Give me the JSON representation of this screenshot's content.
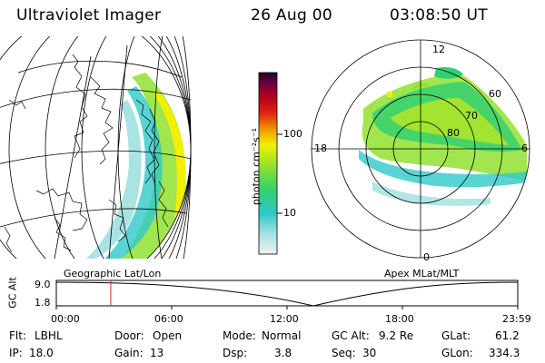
{
  "header": {
    "title": "Ultraviolet Imager",
    "date": "26 Aug 00",
    "time": "03:08:50 UT"
  },
  "colorbar": {
    "label": "photon cm⁻²s⁻¹",
    "ticks": [
      "100",
      "10"
    ],
    "colors": [
      "#f0f0f0",
      "#a0e0e0",
      "#30c8c8",
      "#30d070",
      "#90e030",
      "#f0f000",
      "#f0a000",
      "#e02010",
      "#b00020",
      "#700040",
      "#200020"
    ]
  },
  "left_map": {
    "label": "Geographic Lat/Lon"
  },
  "right_map": {
    "label": "Apex MLat/MLT",
    "mlt_labels": {
      "top": "12",
      "left": "18",
      "right": "6",
      "bottom": "0"
    },
    "lat_labels": [
      "60",
      "70",
      "80"
    ]
  },
  "altitude_plot": {
    "ylabel": "GC Alt",
    "ymax_label": "9.0",
    "ymin_label": "1.8",
    "time_ticks": [
      "00:00",
      "06:00",
      "12:00",
      "18:00",
      "23:59"
    ],
    "current_time_fraction": 0.118
  },
  "info": {
    "flt_label": "Flt:",
    "flt_value": "LBHL",
    "ip_label": "IP:",
    "ip_value": "18.0",
    "door_label": "Door:",
    "door_value": "Open",
    "gain_label": "Gain:",
    "gain_value": "13",
    "mode_label": "Mode:",
    "mode_value": "Normal",
    "dsp_label": "Dsp:",
    "dsp_value": "3.8",
    "gcalt_label": "GC Alt:",
    "gcalt_value": "9.2 Re",
    "seq_label": "Seq:",
    "seq_value": "30",
    "glat_label": "GLat:",
    "glat_value": "61.2",
    "glon_label": "GLon:",
    "glon_value": "334.3"
  }
}
